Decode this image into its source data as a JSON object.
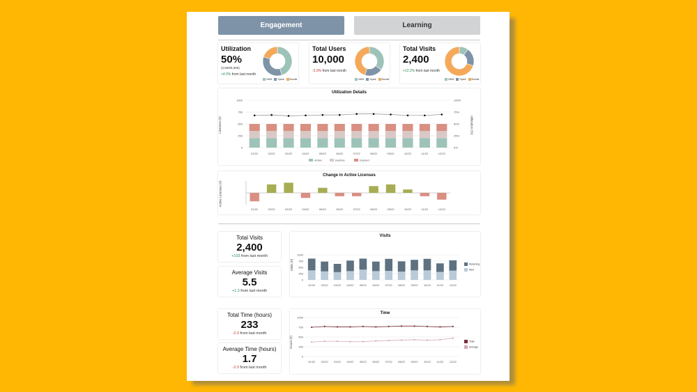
{
  "tabs": [
    {
      "label": "Engagement"
    },
    {
      "label": "Learning"
    }
  ],
  "kpis": [
    {
      "title": "Utilization",
      "value": "50%",
      "sub": "(2,500/5,000)",
      "change": "+4.0%",
      "change_suffix": " from last month",
      "legend": [
        "HMM",
        "Spark",
        "Bundle"
      ]
    },
    {
      "title": "Total Users",
      "value": "10,000",
      "sub": "",
      "change": "-3.0%",
      "change_suffix": " from last month",
      "legend": [
        "HMM",
        "Spark",
        "Bundle"
      ]
    },
    {
      "title": "Total Visits",
      "value": "2,400",
      "sub": "",
      "change": "+12.2%",
      "change_suffix": " from last month",
      "legend": [
        "HMM",
        "Spark",
        "Bundle"
      ]
    }
  ],
  "colors": {
    "teal": "#9dc3b8",
    "slate": "#7e93a8",
    "orange": "#f4a95a",
    "pink": "#d98f82",
    "inactive": "#d9c9c6",
    "olive": "#a7ad52",
    "dark_slate": "#5e7180",
    "light_blue": "#b9cad8",
    "maroon": "#7a2f3b",
    "rose": "#d2a8b0"
  },
  "months": [
    "01/22",
    "02/22",
    "03/22",
    "04/22",
    "05/22",
    "06/22",
    "07/22",
    "08/22",
    "09/22",
    "10/22",
    "11/22",
    "12/22"
  ],
  "summary_cards": [
    {
      "title": "Total Visits",
      "value": "2,400",
      "change": "+103",
      "change_suffix": " from last month"
    },
    {
      "title": "Average Visits",
      "value": "5.5",
      "change": "+1.3",
      "change_suffix": " from last month"
    },
    {
      "title": "Total Time (hours)",
      "value": "233",
      "change": "-2.0",
      "change_suffix": " from last month"
    },
    {
      "title": "Average Time (hours)",
      "value": "1.7",
      "change": "-2.0",
      "change_suffix": " from last month"
    }
  ],
  "chart_data": [
    {
      "type": "pie",
      "title": "Utilization",
      "categories": [
        "HMM",
        "Spark",
        "Bundle"
      ],
      "values": [
        45,
        35,
        20
      ]
    },
    {
      "type": "pie",
      "title": "Total Users",
      "categories": [
        "HMM",
        "Spark",
        "Bundle"
      ],
      "values": [
        35,
        20,
        45
      ]
    },
    {
      "type": "pie",
      "title": "Total Visits",
      "categories": [
        "HMM",
        "Spark",
        "Bundle"
      ],
      "values": [
        10,
        20,
        70
      ]
    },
    {
      "type": "bar",
      "title": "Utilization Details",
      "ylabel": "Licenses (#)",
      "y2label": "Utilization (%)",
      "ylim": [
        0,
        1000
      ],
      "yticks": [
        0,
        250,
        500,
        750,
        1000
      ],
      "y2ticks": [
        "0%",
        "25%",
        "50%",
        "75%",
        "100%"
      ],
      "categories": [
        "01/22",
        "02/22",
        "03/22",
        "04/22",
        "05/22",
        "06/22",
        "07/22",
        "08/22",
        "09/22",
        "10/22",
        "11/22",
        "12/22"
      ],
      "series": [
        {
          "name": "Active",
          "values": [
            200,
            200,
            200,
            200,
            200,
            200,
            200,
            200,
            200,
            200,
            200,
            200
          ]
        },
        {
          "name": "Inactive",
          "values": [
            150,
            150,
            150,
            150,
            150,
            150,
            150,
            150,
            150,
            150,
            150,
            150
          ]
        },
        {
          "name": "Expired",
          "values": [
            150,
            150,
            150,
            150,
            150,
            150,
            150,
            150,
            150,
            150,
            150,
            150
          ]
        }
      ],
      "line": [
        68,
        69,
        67,
        68,
        69,
        69,
        71,
        71,
        70,
        68,
        68,
        70
      ],
      "legend_position": "bottom"
    },
    {
      "type": "bar",
      "title": "Change in Active Licenses",
      "ylabel": "Active Licenses (#)",
      "categories": [
        "01/22",
        "02/22",
        "03/22",
        "04/22",
        "05/22",
        "06/22",
        "07/22",
        "08/22",
        "09/22",
        "10/22",
        "11/22",
        "12/22"
      ],
      "values": [
        -25,
        25,
        30,
        -15,
        15,
        -10,
        -10,
        20,
        25,
        10,
        -10,
        -20
      ]
    },
    {
      "type": "bar",
      "title": "Visits",
      "ylabel": "Visits (#)",
      "ylim": [
        0,
        1000
      ],
      "yticks": [
        0,
        250,
        500,
        750,
        1000
      ],
      "categories": [
        "01/22",
        "02/22",
        "03/22",
        "04/22",
        "05/22",
        "06/22",
        "07/22",
        "08/22",
        "09/22",
        "10/22",
        "11/22",
        "12/22"
      ],
      "series": [
        {
          "name": "New",
          "values": [
            380,
            340,
            310,
            350,
            410,
            350,
            360,
            330,
            380,
            380,
            320,
            370
          ]
        },
        {
          "name": "Returning",
          "values": [
            470,
            390,
            330,
            420,
            440,
            380,
            480,
            410,
            420,
            460,
            340,
            410
          ]
        }
      ],
      "legend_position": "right"
    },
    {
      "type": "line",
      "title": "Time",
      "ylabel": "Hours (#)",
      "ylim": [
        0,
        1000
      ],
      "yticks": [
        0,
        250,
        500,
        750,
        1000
      ],
      "categories": [
        "01/22",
        "02/22",
        "03/22",
        "04/22",
        "05/22",
        "06/22",
        "07/22",
        "08/22",
        "09/22",
        "10/22",
        "11/22",
        "12/22"
      ],
      "series": [
        {
          "name": "Total",
          "values": [
            750,
            770,
            760,
            760,
            770,
            760,
            770,
            780,
            780,
            770,
            760,
            770
          ]
        },
        {
          "name": "Average",
          "values": [
            370,
            390,
            390,
            380,
            380,
            400,
            410,
            420,
            430,
            420,
            430,
            470
          ]
        }
      ],
      "legend_position": "right"
    }
  ]
}
